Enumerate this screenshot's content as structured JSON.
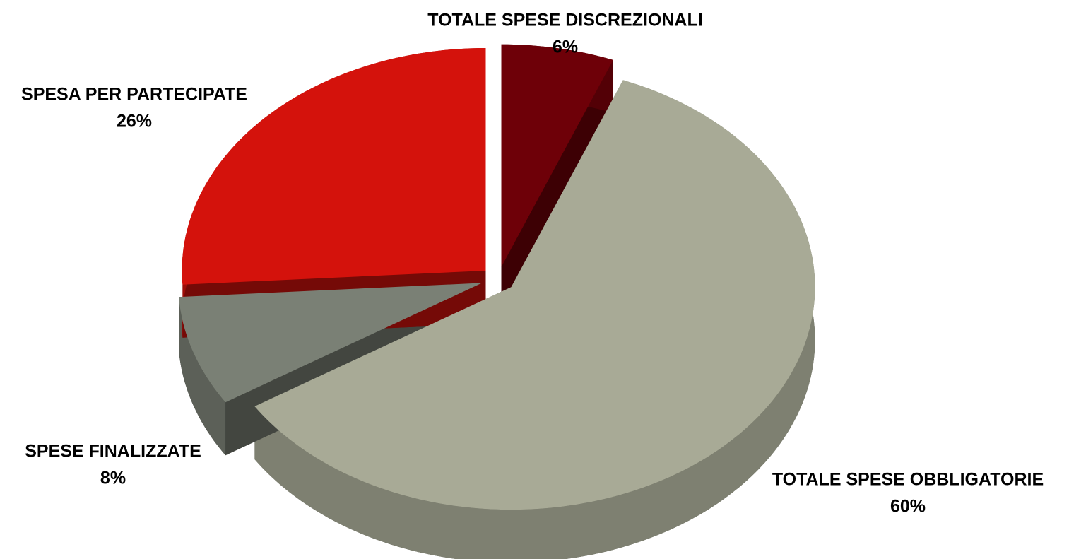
{
  "chart_data": {
    "type": "pie",
    "categories": [
      "TOTALE SPESE DISCREZIONALI",
      "TOTALE SPESE OBBLIGATORIE",
      "SPESE FINALIZZATE",
      "SPESA PER PARTECIPATE"
    ],
    "values": [
      6,
      60,
      8,
      26
    ],
    "value_labels": [
      "6%",
      "60%",
      "8%",
      "26%"
    ],
    "colors": [
      "#6e0008",
      "#a8aa96",
      "#7a8075",
      "#d4120c"
    ]
  }
}
